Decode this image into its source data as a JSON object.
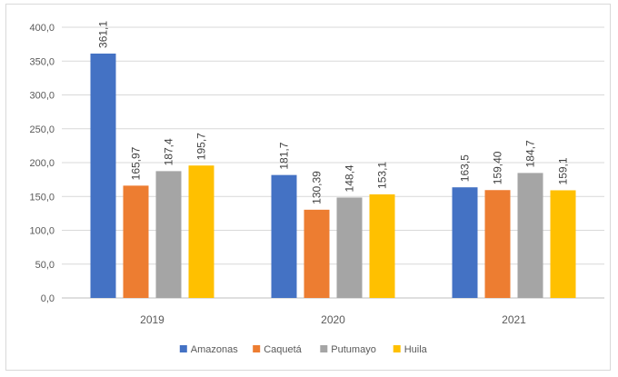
{
  "chart_data": {
    "type": "bar",
    "categories": [
      "2019",
      "2020",
      "2021"
    ],
    "series": [
      {
        "name": "Amazonas",
        "color": "#4472c4",
        "values": [
          361.1,
          181.7,
          163.5
        ],
        "labels": [
          "361,1",
          "181,7",
          "163,5"
        ]
      },
      {
        "name": "Caquetá",
        "color": "#ed7d31",
        "values": [
          165.97,
          130.39,
          159.4
        ],
        "labels": [
          "165,97",
          "130,39",
          "159,40"
        ]
      },
      {
        "name": "Putumayo",
        "color": "#a5a5a5",
        "values": [
          187.4,
          148.4,
          184.7
        ],
        "labels": [
          "187,4",
          "148,4",
          "184,7"
        ]
      },
      {
        "name": "Huila",
        "color": "#ffc000",
        "values": [
          195.7,
          153.1,
          159.1
        ],
        "labels": [
          "195,7",
          "153,1",
          "159,1"
        ]
      }
    ],
    "ylim": [
      0,
      400
    ],
    "yticks": [
      0,
      50,
      100,
      150,
      200,
      250,
      300,
      350,
      400
    ],
    "ytick_labels": [
      "0,0",
      "50,0",
      "100,0",
      "150,0",
      "200,0",
      "250,0",
      "300,0",
      "350,0",
      "400,0"
    ],
    "grid": true,
    "legend_position": "bottom",
    "title": "",
    "xlabel": "",
    "ylabel": ""
  }
}
